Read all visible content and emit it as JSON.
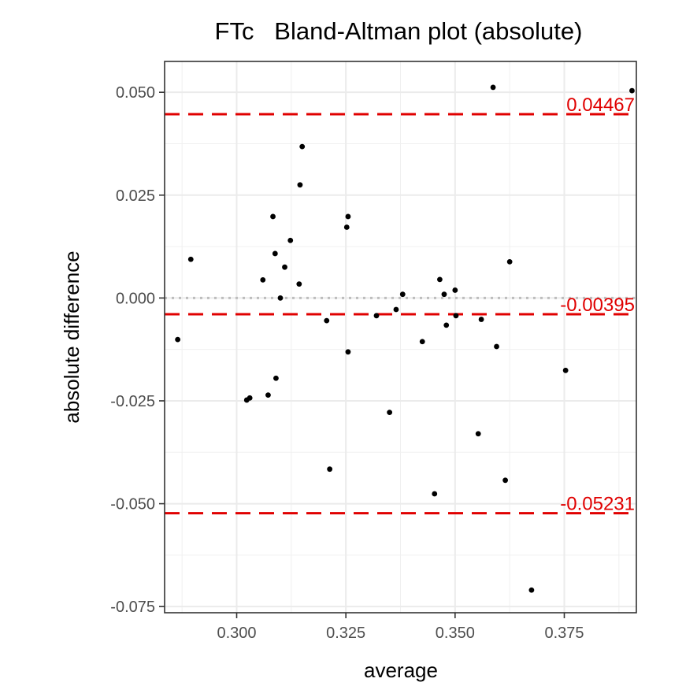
{
  "chart_data": {
    "type": "scatter",
    "title": "FTc   Bland-Altman plot (absolute)",
    "xlabel": "average",
    "ylabel": "absolute difference",
    "xlim": [
      0.2835,
      0.3915
    ],
    "ylim": [
      -0.0765,
      0.0575
    ],
    "x_ticks": [
      0.3,
      0.325,
      0.35,
      0.375
    ],
    "x_tick_labels": [
      "0.300",
      "0.325",
      "0.350",
      "0.375"
    ],
    "y_ticks": [
      0.05,
      0.025,
      0.0,
      -0.025,
      -0.05,
      -0.075
    ],
    "y_tick_labels": [
      "0.050",
      "0.025",
      "0.000",
      "-0.025",
      "-0.050",
      "-0.075"
    ],
    "grid": true,
    "point_color": "#000000",
    "reference_lines": [
      {
        "value": 0.04467,
        "label": "0.04467",
        "color": "#e00000",
        "style": "dashed"
      },
      {
        "value": -0.00395,
        "label": "-0.00395",
        "color": "#e00000",
        "style": "dashed"
      },
      {
        "value": -0.05231,
        "label": "-0.05231",
        "color": "#e00000",
        "style": "dashed"
      }
    ],
    "zero_line": {
      "value": 0.0,
      "color": "#bdbdbd",
      "style": "dotted"
    },
    "points": [
      {
        "x": 0.2865,
        "y": -0.0101
      },
      {
        "x": 0.2895,
        "y": 0.0094
      },
      {
        "x": 0.3023,
        "y": -0.0248
      },
      {
        "x": 0.303,
        "y": -0.0243
      },
      {
        "x": 0.306,
        "y": 0.0044
      },
      {
        "x": 0.3072,
        "y": -0.0236
      },
      {
        "x": 0.3083,
        "y": 0.0198
      },
      {
        "x": 0.3088,
        "y": 0.0108
      },
      {
        "x": 0.309,
        "y": -0.0195
      },
      {
        "x": 0.31,
        "y": 0.0
      },
      {
        "x": 0.311,
        "y": 0.0075
      },
      {
        "x": 0.3123,
        "y": 0.014
      },
      {
        "x": 0.3143,
        "y": 0.0034
      },
      {
        "x": 0.3145,
        "y": 0.0275
      },
      {
        "x": 0.315,
        "y": 0.0368
      },
      {
        "x": 0.3206,
        "y": -0.0055
      },
      {
        "x": 0.3213,
        "y": -0.0416
      },
      {
        "x": 0.3252,
        "y": 0.0172
      },
      {
        "x": 0.3255,
        "y": 0.0198
      },
      {
        "x": 0.3255,
        "y": -0.0131
      },
      {
        "x": 0.332,
        "y": -0.0043
      },
      {
        "x": 0.335,
        "y": -0.0278
      },
      {
        "x": 0.3365,
        "y": -0.0028
      },
      {
        "x": 0.338,
        "y": 0.0009
      },
      {
        "x": 0.3425,
        "y": -0.0106
      },
      {
        "x": 0.3453,
        "y": -0.0476
      },
      {
        "x": 0.3465,
        "y": 0.0045
      },
      {
        "x": 0.3475,
        "y": 0.0009
      },
      {
        "x": 0.348,
        "y": -0.0066
      },
      {
        "x": 0.35,
        "y": 0.0019
      },
      {
        "x": 0.3502,
        "y": -0.0043
      },
      {
        "x": 0.3553,
        "y": -0.033
      },
      {
        "x": 0.356,
        "y": -0.0052
      },
      {
        "x": 0.3587,
        "y": 0.0512
      },
      {
        "x": 0.3595,
        "y": -0.0118
      },
      {
        "x": 0.3615,
        "y": -0.0443
      },
      {
        "x": 0.3625,
        "y": 0.0088
      },
      {
        "x": 0.3675,
        "y": -0.071
      },
      {
        "x": 0.3753,
        "y": -0.0176
      },
      {
        "x": 0.3905,
        "y": 0.0504
      }
    ]
  }
}
